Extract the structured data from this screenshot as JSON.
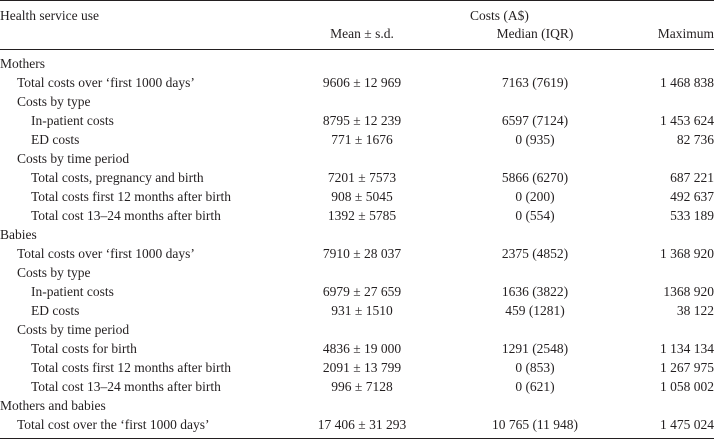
{
  "header": {
    "service_label": "Health service use",
    "costs_label": "Costs (A$)",
    "mean_label": "Mean ± s.d.",
    "median_label": "Median (IQR)",
    "max_label": "Maximum"
  },
  "rows": [
    {
      "level": 0,
      "label": "Mothers",
      "mean": "",
      "median": "",
      "max": ""
    },
    {
      "level": 1,
      "label": "Total costs over ‘first 1000 days’",
      "mean": "9606 ± 12 969",
      "median": "7163 (7619)",
      "max": "1 468 838"
    },
    {
      "level": 1,
      "label": "Costs by type",
      "mean": "",
      "median": "",
      "max": ""
    },
    {
      "level": 2,
      "label": "In-patient costs",
      "mean": "8795 ± 12 239",
      "median": "6597 (7124)",
      "max": "1 453 624"
    },
    {
      "level": 2,
      "label": "ED costs",
      "mean": "771 ± 1676",
      "median": "0 (935)",
      "max": "82 736"
    },
    {
      "level": 1,
      "label": "Costs by time period",
      "mean": "",
      "median": "",
      "max": ""
    },
    {
      "level": 2,
      "label": "Total costs, pregnancy and birth",
      "mean": "7201 ± 7573",
      "median": "5866 (6270)",
      "max": "687 221"
    },
    {
      "level": 2,
      "label": "Total costs first 12 months after birth",
      "mean": "908 ± 5045",
      "median": "0 (200)",
      "max": "492 637"
    },
    {
      "level": 2,
      "label": "Total cost 13–24 months after birth",
      "mean": "1392 ± 5785",
      "median": "0 (554)",
      "max": "533 189"
    },
    {
      "level": 0,
      "label": "Babies",
      "mean": "",
      "median": "",
      "max": ""
    },
    {
      "level": 1,
      "label": "Total costs over ‘first 1000 days’",
      "mean": "7910 ± 28 037",
      "median": "2375 (4852)",
      "max": "1 368 920"
    },
    {
      "level": 1,
      "label": "Costs by type",
      "mean": "",
      "median": "",
      "max": ""
    },
    {
      "level": 2,
      "label": "In-patient costs",
      "mean": "6979 ± 27 659",
      "median": "1636 (3822)",
      "max": "1368 920"
    },
    {
      "level": 2,
      "label": "ED costs",
      "mean": "931 ± 1510",
      "median": "459 (1281)",
      "max": "38 122"
    },
    {
      "level": 1,
      "label": "Costs by time period",
      "mean": "",
      "median": "",
      "max": ""
    },
    {
      "level": 2,
      "label": "Total costs for birth",
      "mean": "4836 ± 19 000",
      "median": "1291 (2548)",
      "max": "1 134 134"
    },
    {
      "level": 2,
      "label": "Total costs first 12 months after birth",
      "mean": "2091 ± 13 799",
      "median": "0 (853)",
      "max": "1 267 975"
    },
    {
      "level": 2,
      "label": "Total cost 13–24 months after birth",
      "mean": "996 ± 7128",
      "median": "0 (621)",
      "max": "1 058 002"
    },
    {
      "level": 0,
      "label": "Mothers and babies",
      "mean": "",
      "median": "",
      "max": ""
    },
    {
      "level": 1,
      "label": "Total cost over the ‘first 1000 days’",
      "mean": "17 406 ± 31 293",
      "median": "10 765 (11 948)",
      "max": "1 475 024"
    }
  ]
}
